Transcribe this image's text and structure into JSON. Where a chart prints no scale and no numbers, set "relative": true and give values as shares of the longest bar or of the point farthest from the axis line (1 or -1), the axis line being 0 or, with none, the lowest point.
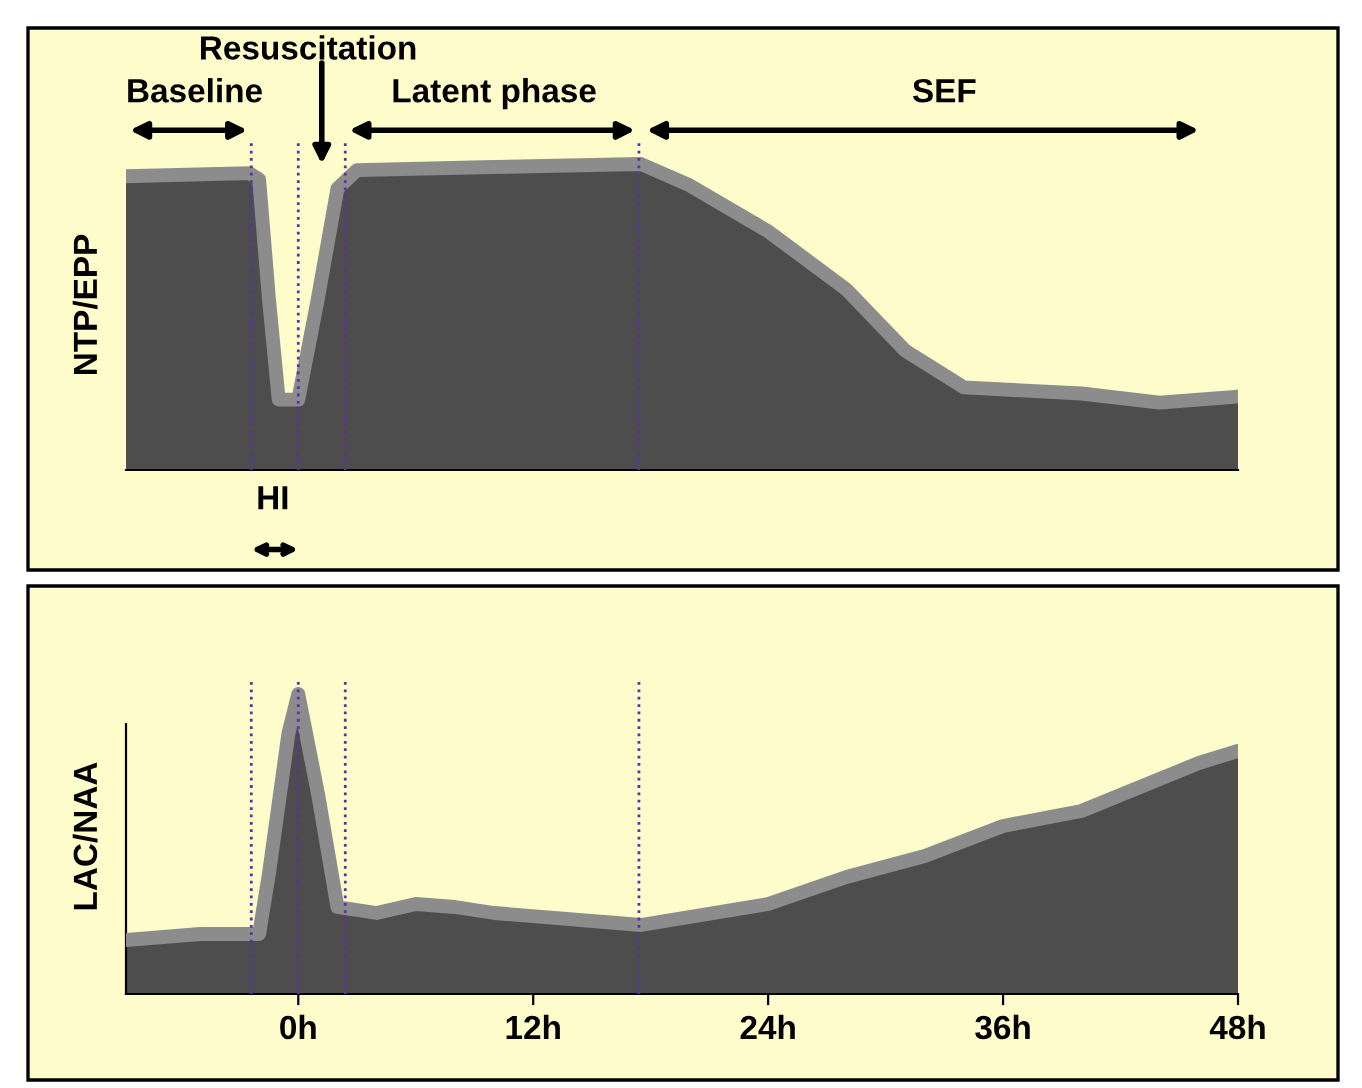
{
  "chart_data": [
    {
      "type": "area",
      "ylabel": "NTP/EPP",
      "relative": true,
      "xlim": [
        -8.8,
        48
      ],
      "tick_labels": false,
      "grid": false,
      "annotations": [
        "Baseline",
        "Resuscitation",
        "Latent phase",
        "SEF",
        "HI"
      ],
      "ref_lines": [
        {
          "axis": "x",
          "value": -2.4,
          "color": "#5533aa",
          "line_style": "dotted"
        },
        {
          "axis": "x",
          "value": 0,
          "color": "#5533aa",
          "line_style": "dotted"
        },
        {
          "axis": "x",
          "value": 2.4,
          "color": "#5533aa",
          "line_style": "dotted"
        },
        {
          "axis": "x",
          "value": 17.4,
          "color": "#5533aa",
          "line_style": "dotted"
        }
      ],
      "series": [
        {
          "color": "#8c8c8c",
          "x": [
            -8.8,
            -2.5,
            -2,
            -1.5,
            -1,
            0,
            1,
            2,
            3,
            10,
            17.5,
            20,
            24,
            28,
            31,
            34,
            40,
            44,
            48
          ],
          "values": [
            0.96,
            0.97,
            0.95,
            0.56,
            0.23,
            0.23,
            0.56,
            0.92,
            0.98,
            0.99,
            1,
            0.93,
            0.78,
            0.59,
            0.39,
            0.27,
            0.25,
            0.22,
            0.24
          ]
        }
      ]
    },
    {
      "type": "area",
      "ylabel": "LAC/NAA",
      "relative": true,
      "xlim": [
        -8.8,
        48
      ],
      "tick_labels": "x",
      "grid": false,
      "xticks": [
        {
          "value": 0,
          "label": "0h"
        },
        {
          "value": 12,
          "label": "12h"
        },
        {
          "value": 24,
          "label": "24h"
        },
        {
          "value": 36,
          "label": "36h"
        },
        {
          "value": 48,
          "label": "48h"
        }
      ],
      "ref_lines": [
        {
          "axis": "x",
          "value": -2.4,
          "color": "#5533aa",
          "line_style": "dotted"
        },
        {
          "axis": "x",
          "value": 0,
          "color": "#5533aa",
          "line_style": "dotted"
        },
        {
          "axis": "x",
          "value": 2.4,
          "color": "#5533aa",
          "line_style": "dotted"
        },
        {
          "axis": "x",
          "value": 17.4,
          "color": "#5533aa",
          "line_style": "dotted"
        }
      ],
      "series": [
        {
          "color": "#8c8c8c",
          "x": [
            -8.8,
            -5,
            -2,
            -1.5,
            -0.5,
            0,
            1,
            2,
            4,
            6,
            8,
            10,
            17.5,
            24,
            28,
            32,
            36,
            40,
            43,
            46,
            48
          ],
          "values": [
            0.18,
            0.2,
            0.2,
            0.4,
            0.87,
            1,
            0.67,
            0.29,
            0.27,
            0.3,
            0.29,
            0.27,
            0.23,
            0.3,
            0.39,
            0.46,
            0.56,
            0.61,
            0.69,
            0.77,
            0.81
          ]
        }
      ]
    }
  ]
}
